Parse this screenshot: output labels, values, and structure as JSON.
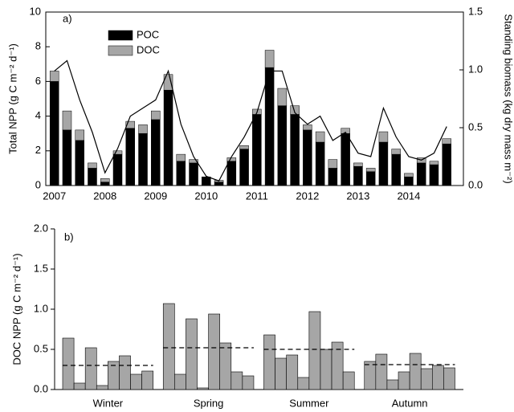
{
  "chart_data": [
    {
      "type": "stacked_bar_line",
      "annotation": "a)",
      "ylabel": "Total NPP (g C m⁻² d⁻¹)",
      "y2label": "Standing biomass (kg dry mass m⁻²)",
      "x": [
        2007,
        2007.25,
        2007.5,
        2007.75,
        2008,
        2008.25,
        2008.5,
        2008.75,
        2009,
        2009.25,
        2009.5,
        2009.75,
        2010,
        2010.25,
        2010.5,
        2010.75,
        2011,
        2011.25,
        2011.5,
        2011.75,
        2012,
        2012.25,
        2012.5,
        2012.75,
        2013,
        2013.25,
        2013.5,
        2013.75,
        2014,
        2014.25,
        2014.5,
        2014.75
      ],
      "series": [
        {
          "name": "POC",
          "color": "#000000",
          "values": [
            6.0,
            3.2,
            2.6,
            1.0,
            0.2,
            1.8,
            3.3,
            3.0,
            3.8,
            5.5,
            1.4,
            1.3,
            0.5,
            0.2,
            1.4,
            2.1,
            4.1,
            6.8,
            4.6,
            4.1,
            3.2,
            2.5,
            1.0,
            3.0,
            1.1,
            0.8,
            2.5,
            1.8,
            0.5,
            1.3,
            1.2,
            2.4
          ]
        },
        {
          "name": "DOC",
          "color": "#a6a6a6",
          "values": [
            0.6,
            1.1,
            0.6,
            0.3,
            0.2,
            0.2,
            0.4,
            0.5,
            0.5,
            0.9,
            0.4,
            0.2,
            0.0,
            0.1,
            0.2,
            0.2,
            0.3,
            1.0,
            1.0,
            0.5,
            0.3,
            0.6,
            0.5,
            0.3,
            0.2,
            0.2,
            0.6,
            0.3,
            0.2,
            0.3,
            0.2,
            0.3
          ]
        },
        {
          "color": "#000000",
          "axis": "y2",
          "values": [
            0.99,
            1.08,
            0.74,
            0.46,
            0.11,
            0.32,
            0.6,
            0.67,
            0.74,
            0.99,
            0.53,
            0.25,
            0.08,
            0.04,
            0.25,
            0.42,
            0.63,
            0.99,
            0.99,
            0.63,
            0.53,
            0.6,
            0.39,
            0.46,
            0.28,
            0.25,
            0.67,
            0.42,
            0.25,
            0.22,
            0.28,
            0.51
          ]
        }
      ],
      "xlim": [
        2006.83,
        2015.08
      ],
      "xticks": [
        2007,
        2008,
        2009,
        2010,
        2011,
        2012,
        2013,
        2014
      ],
      "ylim": [
        0,
        10
      ],
      "yticks": [
        0,
        2,
        4,
        6,
        8,
        10
      ],
      "y2lim": [
        0,
        1.5
      ],
      "y2ticks": [
        {
          "value": 0,
          "label": "0.0"
        },
        {
          "value": 0.5,
          "label": "0.5"
        },
        {
          "value": 1,
          "label": "1.0"
        },
        {
          "value": 1.5,
          "label": "1.5"
        }
      ],
      "legend": "upper left"
    },
    {
      "type": "grouped_bar",
      "annotation": "b)",
      "ylabel": "DOC NPP (g C m⁻² d⁻¹)",
      "categories": [
        "Winter",
        "Spring",
        "Summer",
        "Autumn"
      ],
      "color": "#a6a6a6",
      "values": [
        [
          0.64,
          0.08,
          0.52,
          0.05,
          0.35,
          0.42,
          0.19,
          0.23
        ],
        [
          1.07,
          0.19,
          0.88,
          0.02,
          0.94,
          0.58,
          0.22,
          0.17
        ],
        [
          0.68,
          0.39,
          0.43,
          0.15,
          0.97,
          0.5,
          0.59,
          0.22
        ],
        [
          0.35,
          0.44,
          0.12,
          0.22,
          0.45,
          0.26,
          0.3,
          0.27
        ]
      ],
      "means": [
        0.3,
        0.52,
        0.5,
        0.31
      ],
      "ylim": [
        0,
        2
      ],
      "yticks": [
        {
          "value": 0,
          "label": "0.0"
        },
        {
          "value": 0.5,
          "label": "0.5"
        },
        {
          "value": 1,
          "label": "1.0"
        },
        {
          "value": 1.5,
          "label": "1.5"
        },
        {
          "value": 2,
          "label": "2.0"
        }
      ]
    }
  ]
}
